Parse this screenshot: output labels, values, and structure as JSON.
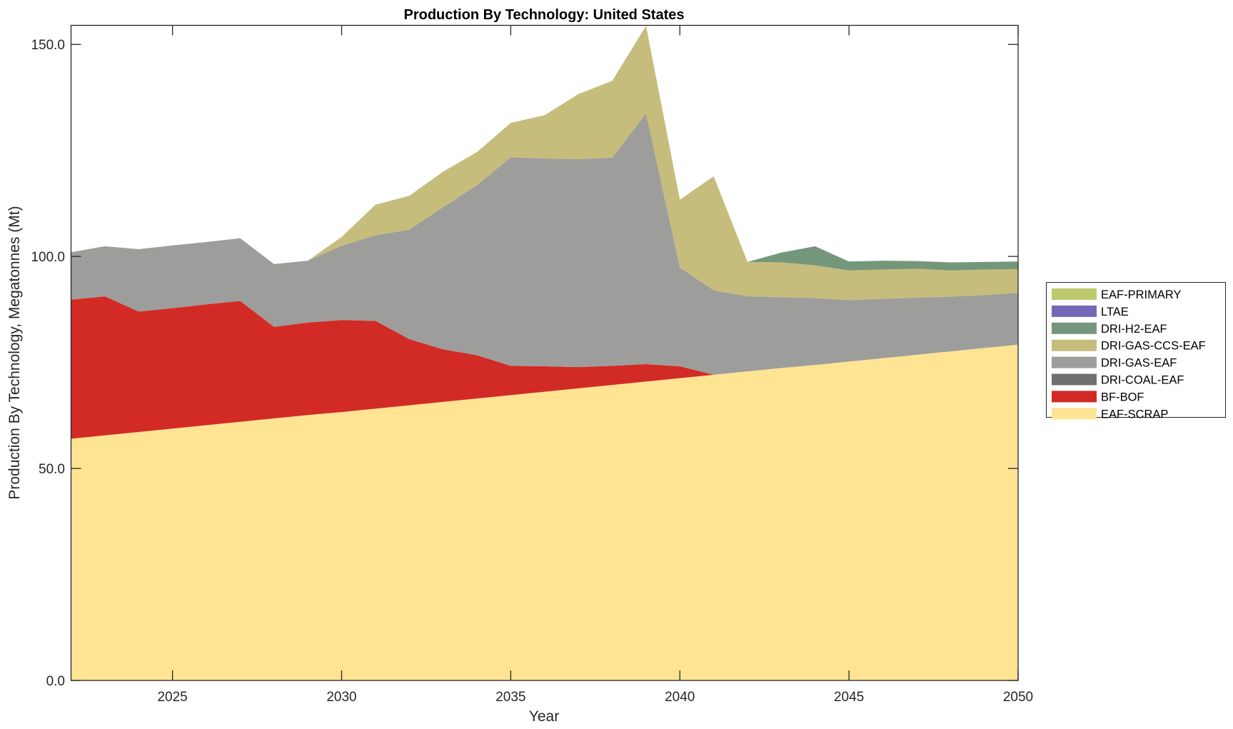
{
  "chart_data": {
    "type": "area",
    "stacked": true,
    "title": "Production By Technology: United States",
    "xlabel": "Year",
    "ylabel": "Production By Technology, Megatonnes (Mt)",
    "xlim": [
      2022,
      2050
    ],
    "ylim": [
      0,
      154.5
    ],
    "x_ticks": [
      2025,
      2030,
      2035,
      2040,
      2045,
      2050
    ],
    "x_tick_labels": [
      "2025",
      "2030",
      "2035",
      "2040",
      "2045",
      "2050"
    ],
    "y_ticks": [
      0,
      50,
      100,
      150
    ],
    "y_tick_labels": [
      "0.0",
      "50.0",
      "100.0",
      "150.0"
    ],
    "grid": false,
    "legend_position": "right",
    "x": [
      2022,
      2023,
      2024,
      2025,
      2026,
      2027,
      2028,
      2029,
      2030,
      2031,
      2032,
      2033,
      2034,
      2035,
      2036,
      2037,
      2038,
      2039,
      2040,
      2041,
      2042,
      2043,
      2044,
      2045,
      2046,
      2047,
      2048,
      2049,
      2050
    ],
    "series": [
      {
        "name": "EAF-SCRAP",
        "color": "#FEE493",
        "values": [
          57.0,
          57.8,
          58.6,
          59.4,
          60.2,
          61.0,
          61.8,
          62.6,
          63.3,
          64.1,
          64.9,
          65.7,
          66.5,
          67.3,
          68.1,
          68.9,
          69.7,
          70.5,
          71.3,
          72.1,
          72.9,
          73.7,
          74.4,
          75.2,
          76.0,
          76.8,
          77.6,
          78.4,
          79.2
        ]
      },
      {
        "name": "BF-BOF",
        "color": "#D22B25",
        "values": [
          32.8,
          32.8,
          28.4,
          28.4,
          28.5,
          28.5,
          21.6,
          21.8,
          21.7,
          20.7,
          15.6,
          12.4,
          10.2,
          6.9,
          6.0,
          5.0,
          4.5,
          4.1,
          2.8,
          0,
          0,
          0,
          0,
          0,
          0,
          0,
          0,
          0,
          0
        ]
      },
      {
        "name": "DRI-COAL-EAF",
        "color": "#707070",
        "values": [
          0,
          0,
          0,
          0,
          0,
          0,
          0,
          0,
          0,
          0,
          0,
          0,
          0,
          0,
          0,
          0,
          0,
          0,
          0,
          0,
          0,
          0,
          0,
          0,
          0,
          0,
          0,
          0,
          0
        ]
      },
      {
        "name": "DRI-GAS-EAF",
        "color": "#9D9D9C",
        "values": [
          11.2,
          11.8,
          14.7,
          14.8,
          14.7,
          14.8,
          14.8,
          14.6,
          17.5,
          20.2,
          25.8,
          33.5,
          40.1,
          49.2,
          49.0,
          49.0,
          49.1,
          59.1,
          23.3,
          19.9,
          17.7,
          16.7,
          15.8,
          14.5,
          14.0,
          13.5,
          12.9,
          12.5,
          12.2
        ]
      },
      {
        "name": "DRI-GAS-CCS-EAF",
        "color": "#C6BD7D",
        "values": [
          0,
          0,
          0,
          0,
          0,
          0,
          0,
          0,
          2.1,
          7.2,
          8.0,
          8.4,
          7.8,
          8.1,
          10.2,
          15.4,
          18.1,
          20.7,
          16.0,
          26.9,
          8.1,
          8.2,
          7.7,
          7.0,
          6.9,
          6.8,
          6.2,
          6.0,
          5.6
        ]
      },
      {
        "name": "DRI-H2-EAF",
        "color": "#74977C",
        "values": [
          0,
          0,
          0,
          0,
          0,
          0,
          0,
          0,
          0,
          0,
          0,
          0,
          0,
          0,
          0,
          0,
          0,
          0,
          0,
          0,
          0,
          2.3,
          4.5,
          2.1,
          2.1,
          1.8,
          1.9,
          1.8,
          1.8
        ]
      },
      {
        "name": "LTAE",
        "color": "#7568B6",
        "values": [
          0,
          0,
          0,
          0,
          0,
          0,
          0,
          0,
          0,
          0,
          0,
          0,
          0,
          0,
          0,
          0,
          0,
          0,
          0,
          0,
          0,
          0,
          0,
          0,
          0,
          0,
          0,
          0,
          0
        ]
      },
      {
        "name": "EAF-PRIMARY",
        "color": "#BEC86C",
        "values": [
          0,
          0,
          0,
          0,
          0,
          0,
          0,
          0,
          0,
          0,
          0,
          0,
          0,
          0,
          0,
          0,
          0,
          0,
          0,
          0,
          0,
          0,
          0,
          0,
          0,
          0,
          0,
          0,
          0
        ]
      }
    ],
    "legend_order": [
      "EAF-PRIMARY",
      "LTAE",
      "DRI-H2-EAF",
      "DRI-GAS-CCS-EAF",
      "DRI-GAS-EAF",
      "DRI-COAL-EAF",
      "BF-BOF",
      "EAF-SCRAP"
    ]
  }
}
